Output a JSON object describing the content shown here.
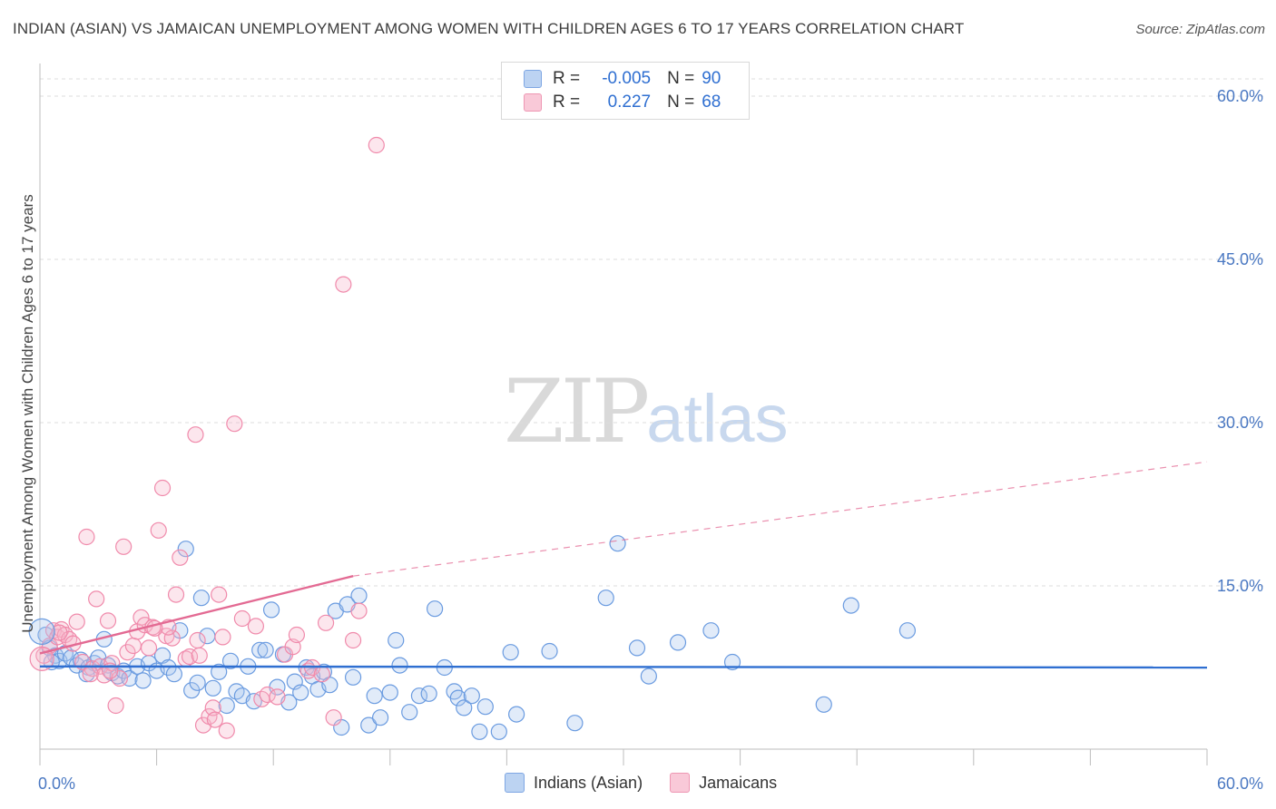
{
  "header": {
    "title": "INDIAN (ASIAN) VS JAMAICAN UNEMPLOYMENT AMONG WOMEN WITH CHILDREN AGES 6 TO 17 YEARS CORRELATION CHART",
    "source": "Source: ZipAtlas.com"
  },
  "watermark": {
    "zip": "ZIP",
    "atlas": "atlas"
  },
  "legend": {
    "rows": [
      {
        "r_label": "R =",
        "r_value": "-0.005",
        "n_label": "N =",
        "n_value": "90",
        "color": "#a9c6ee"
      },
      {
        "r_label": "R =",
        "r_value": "0.227",
        "n_label": "N =",
        "n_value": "68",
        "color": "#f6b8cb"
      }
    ]
  },
  "bottom_legend": {
    "items": [
      {
        "label": "Indians (Asian)",
        "color": "#a9c6ee"
      },
      {
        "label": "Jamaicans",
        "color": "#f6b8cb"
      }
    ]
  },
  "chart_data": {
    "type": "scatter",
    "title": "INDIAN (ASIAN) VS JAMAICAN UNEMPLOYMENT AMONG WOMEN WITH CHILDREN AGES 6 TO 17 YEARS CORRELATION CHART",
    "ylabel": "Unemployment Among Women with Children Ages 6 to 17 years",
    "xlabel": "",
    "xlim": [
      0,
      60
    ],
    "ylim": [
      0,
      63
    ],
    "x_tick_labels": [
      "0.0%",
      "60.0%"
    ],
    "y_ticks": [
      15,
      30,
      45,
      60
    ],
    "y_tick_labels": [
      "15.0%",
      "30.0%",
      "45.0%",
      "60.0%"
    ],
    "grid": true,
    "legend_position": "top-center",
    "series": [
      {
        "name": "Indians (Asian)",
        "color": "#6a9be0",
        "trend": {
          "x": [
            0,
            60
          ],
          "y": [
            7.6,
            7.5
          ],
          "style": "solid",
          "color": "#2f6fd1"
        },
        "points": [
          [
            0.3,
            10.5
          ],
          [
            0.5,
            9.3
          ],
          [
            0.8,
            8.6
          ],
          [
            1.0,
            8.1
          ],
          [
            1.3,
            8.8
          ],
          [
            1.6,
            8.4
          ],
          [
            1.9,
            7.7
          ],
          [
            2.1,
            8.2
          ],
          [
            2.5,
            7.5
          ],
          [
            2.8,
            7.9
          ],
          [
            3.0,
            8.4
          ],
          [
            3.3,
            10.1
          ],
          [
            3.5,
            7.7
          ],
          [
            3.7,
            7.0
          ],
          [
            4.0,
            6.7
          ],
          [
            4.3,
            7.2
          ],
          [
            4.6,
            6.5
          ],
          [
            5.0,
            7.6
          ],
          [
            5.3,
            6.3
          ],
          [
            5.6,
            7.9
          ],
          [
            6.0,
            7.2
          ],
          [
            6.3,
            8.6
          ],
          [
            6.6,
            7.5
          ],
          [
            6.9,
            6.9
          ],
          [
            7.2,
            10.9
          ],
          [
            7.5,
            18.4
          ],
          [
            7.8,
            5.4
          ],
          [
            8.1,
            6.1
          ],
          [
            8.3,
            13.9
          ],
          [
            8.6,
            10.4
          ],
          [
            8.9,
            5.6
          ],
          [
            9.2,
            7.1
          ],
          [
            9.6,
            4.0
          ],
          [
            9.8,
            8.1
          ],
          [
            10.1,
            5.3
          ],
          [
            10.4,
            4.9
          ],
          [
            10.7,
            7.6
          ],
          [
            11.0,
            4.4
          ],
          [
            11.3,
            9.1
          ],
          [
            11.6,
            9.1
          ],
          [
            11.9,
            12.8
          ],
          [
            12.2,
            5.7
          ],
          [
            12.5,
            8.7
          ],
          [
            12.8,
            4.3
          ],
          [
            13.1,
            6.2
          ],
          [
            13.4,
            5.2
          ],
          [
            13.7,
            7.5
          ],
          [
            14.0,
            6.7
          ],
          [
            14.3,
            5.5
          ],
          [
            14.6,
            7.1
          ],
          [
            14.9,
            5.9
          ],
          [
            15.2,
            12.7
          ],
          [
            15.5,
            2.0
          ],
          [
            15.8,
            13.3
          ],
          [
            16.1,
            6.6
          ],
          [
            16.4,
            14.1
          ],
          [
            16.9,
            2.2
          ],
          [
            17.2,
            4.9
          ],
          [
            17.5,
            2.9
          ],
          [
            18.0,
            5.2
          ],
          [
            18.3,
            10.0
          ],
          [
            18.5,
            7.7
          ],
          [
            19.0,
            3.4
          ],
          [
            19.5,
            4.9
          ],
          [
            20.0,
            5.1
          ],
          [
            20.3,
            12.9
          ],
          [
            20.8,
            7.5
          ],
          [
            21.3,
            5.3
          ],
          [
            21.5,
            4.7
          ],
          [
            21.8,
            3.8
          ],
          [
            22.2,
            4.9
          ],
          [
            22.6,
            1.6
          ],
          [
            22.9,
            3.9
          ],
          [
            23.6,
            1.6
          ],
          [
            24.2,
            8.9
          ],
          [
            24.5,
            3.2
          ],
          [
            26.2,
            9.0
          ],
          [
            27.5,
            2.4
          ],
          [
            29.1,
            13.9
          ],
          [
            29.7,
            18.9
          ],
          [
            30.7,
            9.3
          ],
          [
            31.3,
            6.7
          ],
          [
            32.8,
            9.8
          ],
          [
            34.5,
            10.9
          ],
          [
            35.6,
            8.0
          ],
          [
            40.3,
            4.1
          ],
          [
            41.7,
            13.2
          ],
          [
            44.6,
            10.9
          ],
          [
            0.6,
            8.0
          ],
          [
            2.4,
            6.9
          ]
        ]
      },
      {
        "name": "Jamaicans",
        "color": "#f08aab",
        "trend": {
          "x": [
            0,
            16.1
          ],
          "y": [
            8.8,
            15.9
          ],
          "style": "solid",
          "color": "#e36a93",
          "extension": {
            "x": [
              16.1,
              60
            ],
            "y": [
              15.9,
              26.4
            ],
            "style": "dashed"
          }
        },
        "points": [
          [
            0.2,
            8.6
          ],
          [
            0.5,
            9.5
          ],
          [
            0.7,
            10.9
          ],
          [
            0.9,
            10.3
          ],
          [
            1.1,
            11.0
          ],
          [
            1.3,
            10.5
          ],
          [
            1.5,
            10.1
          ],
          [
            1.7,
            9.7
          ],
          [
            1.9,
            11.7
          ],
          [
            2.2,
            8.0
          ],
          [
            2.4,
            19.5
          ],
          [
            2.7,
            7.4
          ],
          [
            2.9,
            13.8
          ],
          [
            3.1,
            7.6
          ],
          [
            3.3,
            6.8
          ],
          [
            3.5,
            11.8
          ],
          [
            3.7,
            7.9
          ],
          [
            3.9,
            4.0
          ],
          [
            4.1,
            6.5
          ],
          [
            4.3,
            18.6
          ],
          [
            4.5,
            8.9
          ],
          [
            4.8,
            9.5
          ],
          [
            5.0,
            10.8
          ],
          [
            5.2,
            12.1
          ],
          [
            5.4,
            11.4
          ],
          [
            5.6,
            9.3
          ],
          [
            5.8,
            11.2
          ],
          [
            6.1,
            20.1
          ],
          [
            6.3,
            24.0
          ],
          [
            6.5,
            10.4
          ],
          [
            6.8,
            10.2
          ],
          [
            7.0,
            14.2
          ],
          [
            7.2,
            17.6
          ],
          [
            7.5,
            8.3
          ],
          [
            7.7,
            8.5
          ],
          [
            8.0,
            28.9
          ],
          [
            8.2,
            8.6
          ],
          [
            8.4,
            2.2
          ],
          [
            8.7,
            3.0
          ],
          [
            8.9,
            3.8
          ],
          [
            9.2,
            14.2
          ],
          [
            9.4,
            10.3
          ],
          [
            9.6,
            1.7
          ],
          [
            10.0,
            29.9
          ],
          [
            10.4,
            12.0
          ],
          [
            11.1,
            11.3
          ],
          [
            11.4,
            4.6
          ],
          [
            11.7,
            5.0
          ],
          [
            12.2,
            4.8
          ],
          [
            12.6,
            8.7
          ],
          [
            13.0,
            9.4
          ],
          [
            13.2,
            10.5
          ],
          [
            13.8,
            7.2
          ],
          [
            14.0,
            7.5
          ],
          [
            14.5,
            6.9
          ],
          [
            14.7,
            11.6
          ],
          [
            15.1,
            2.9
          ],
          [
            15.6,
            42.7
          ],
          [
            16.1,
            10.0
          ],
          [
            16.4,
            12.7
          ],
          [
            17.3,
            55.5
          ],
          [
            6.6,
            11.2
          ],
          [
            3.6,
            7.2
          ],
          [
            5.9,
            11.1
          ],
          [
            1.0,
            10.7
          ],
          [
            2.6,
            6.9
          ],
          [
            8.1,
            10.0
          ],
          [
            9.0,
            2.7
          ]
        ]
      }
    ]
  }
}
